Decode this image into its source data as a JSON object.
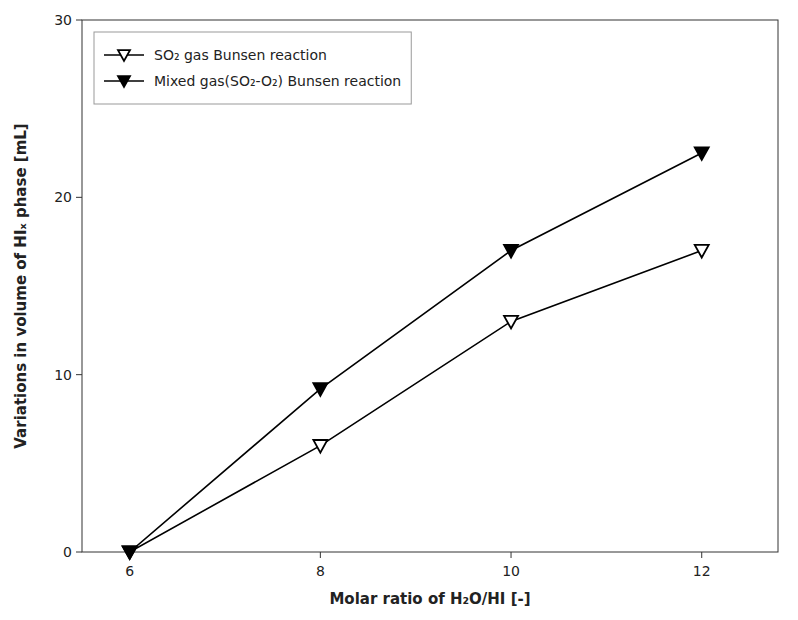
{
  "chart_data": {
    "type": "line",
    "x": [
      6,
      8,
      10,
      12
    ],
    "series": [
      {
        "name": "SO₂ gas Bunsen reaction",
        "color": "#000000",
        "marker": "triangle-down-open",
        "line_style": "solid",
        "values": [
          0.0,
          6.0,
          13.0,
          17.0
        ]
      },
      {
        "name": "Mixed gas(SO₂-O₂) Bunsen reaction",
        "color": "#000000",
        "marker": "triangle-down",
        "line_style": "solid",
        "values": [
          0.0,
          9.2,
          17.0,
          22.5
        ]
      }
    ],
    "x_label": "Molar ratio of H₂O/HI [-]",
    "y_label": "Variations in volume of HIₓ phase [mL]",
    "xlim": [
      5.5,
      12.8
    ],
    "ylim": [
      0,
      30
    ],
    "xticks": [
      6,
      8,
      10,
      12
    ],
    "yticks": [
      0,
      10,
      20,
      30
    ],
    "grid": false,
    "legend": "upper left"
  }
}
